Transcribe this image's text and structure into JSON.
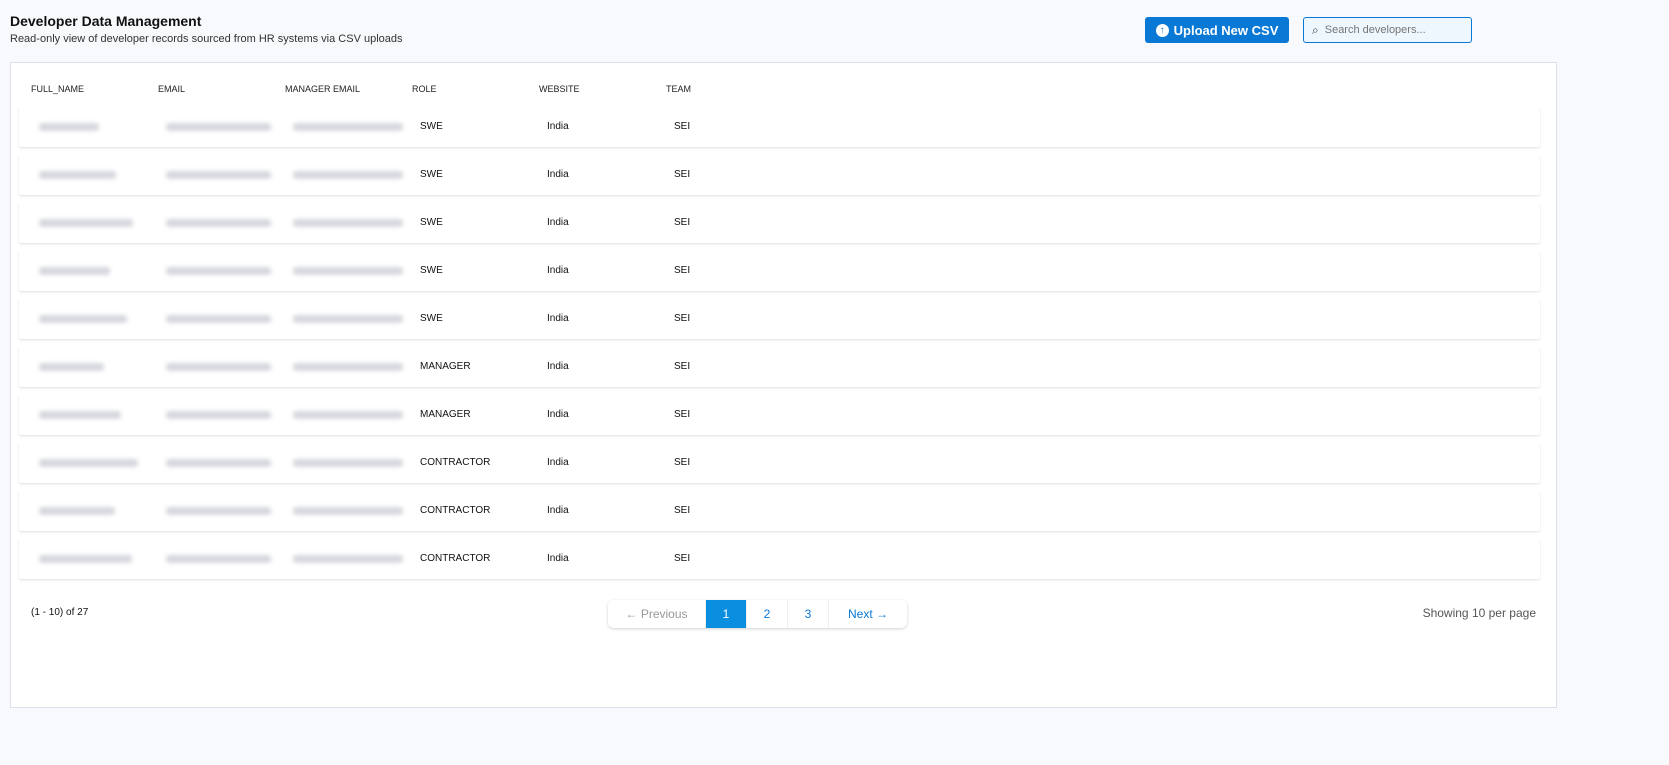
{
  "header": {
    "title": "Developer Data Management",
    "subtitle": "Read-only view of developer records sourced from HR systems via CSV uploads",
    "upload_label": "Upload New CSV",
    "search_placeholder": "Search developers..."
  },
  "table": {
    "columns": [
      "FULL_NAME",
      "EMAIL",
      "MANAGER EMAIL",
      "ROLE",
      "WEBSITE",
      "TEAM"
    ],
    "rows": [
      {
        "role": "SWE",
        "website": "India",
        "team": "SEI"
      },
      {
        "role": "SWE",
        "website": "India",
        "team": "SEI"
      },
      {
        "role": "SWE",
        "website": "India",
        "team": "SEI"
      },
      {
        "role": "SWE",
        "website": "India",
        "team": "SEI"
      },
      {
        "role": "SWE",
        "website": "India",
        "team": "SEI"
      },
      {
        "role": "MANAGER",
        "website": "India",
        "team": "SEI"
      },
      {
        "role": "MANAGER",
        "website": "India",
        "team": "SEI"
      },
      {
        "role": "CONTRACTOR",
        "website": "India",
        "team": "SEI"
      },
      {
        "role": "CONTRACTOR",
        "website": "India",
        "team": "SEI"
      },
      {
        "role": "CONTRACTOR",
        "website": "India",
        "team": "SEI"
      }
    ]
  },
  "pagination": {
    "count": "(1 - 10) of 27",
    "previous": "← Previous",
    "pages": [
      "1",
      "2",
      "3"
    ],
    "current": "1",
    "next": "Next →",
    "per_page": "Showing 10 per page"
  }
}
